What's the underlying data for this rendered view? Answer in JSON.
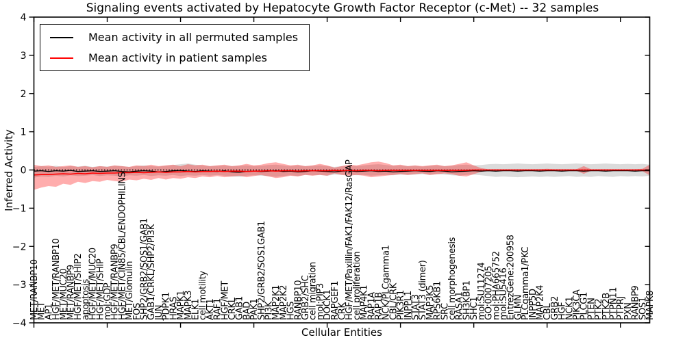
{
  "title": "Signaling events activated by Hepatocyte Growth Factor Receptor (c-Met) -- 32 samples",
  "legend": {
    "entries": [
      {
        "label": "Mean activity in all permuted samples",
        "color": "#000000"
      },
      {
        "label": "Mean activity in patient samples",
        "color": "#ff0000"
      }
    ]
  },
  "chart_data": {
    "type": "line",
    "title": "Signaling events activated by Hepatocyte Growth Factor Receptor (c-Met) -- 32 samples",
    "xlabel": "Cellular Entities",
    "ylabel": "Inferred Activity",
    "ylim": [
      -4,
      4
    ],
    "yticks": [
      -4,
      -3,
      -2,
      -1,
      0,
      1,
      2,
      3,
      4
    ],
    "x_major_tick_every": 10,
    "grid": false,
    "legend_position": "upper left",
    "zero_reference_line": {
      "y": 0,
      "style": "dotted",
      "color": "#000000"
    },
    "categories": [
      "MET/RANBP10",
      "MET",
      "AP1",
      "HGF/MET/RANBP10",
      "MET/MUC20",
      "MET/RANBP9",
      "HGF/MET/SHIP2",
      "apoptosis",
      "HGF/MET/MUC20",
      "HGF/MET/SHIP",
      "mol:GDP",
      "HGF/MET/RANBP9",
      "HGF/MET/CIN85/CBL/ENDOPHILINS",
      "MET/Glomulin",
      "FOS",
      "SHP2/GRB2/SOS1/GAB1",
      "GAB1/CRKL/SHP2/PI3K",
      "JUN",
      "PDPK1",
      "HRAS",
      "MAPK1",
      "MAPK3",
      "ELK1",
      "cell motility",
      "AKT1",
      "RAF1",
      "HGF/MET",
      "CRKL",
      "GAB1",
      "BAD",
      "PAK1",
      "SHP2/GRB2/SOS1GAB1",
      "PI3K",
      "MAP2K1",
      "MAP2K2",
      "HGS",
      "RANBP10",
      "GRB2/SHC",
      "cell migration",
      "mol:PIP3",
      "DOCK1",
      "RAPGEF1",
      "CRK",
      "HGF/MET/Paxillin/FAK1/FAK12/RasGAP",
      "cell proliferation",
      "MAP4K1",
      "RAP1A",
      "RAP1B",
      "NCK/PLCgamma1",
      "CBL/CRK",
      "PIK3R1",
      "INPPL1",
      "STAT3",
      "STAT3 (dimer)",
      "MAP3K5",
      "RPS6KB1",
      "SRC",
      "cell morphogenesis",
      "RASA1",
      "SH3KBP1",
      "SHC1",
      "mol:SU11274",
      "GO:0007205",
      "mol:PHA665752",
      "mol:SU5416",
      "EntrezGene:200958",
      "GLMN",
      "PLCgamma1/PKC",
      "INPP5D",
      "MAP2K4",
      "CBL",
      "GRB2",
      "HGF",
      "NCK1",
      "PIK3CA",
      "PLCG1",
      "PTEN",
      "PTK2",
      "PTK2B",
      "PTPN11",
      "PTPRJ",
      "PXN",
      "RANBP9",
      "SOS1",
      "MAPK8"
    ],
    "series": [
      {
        "name": "Mean activity in all permuted samples",
        "color": "#000000",
        "values": [
          -0.03,
          -0.02,
          -0.04,
          -0.02,
          -0.03,
          -0.01,
          -0.04,
          -0.03,
          -0.02,
          -0.04,
          -0.03,
          -0.02,
          -0.04,
          -0.05,
          -0.03,
          -0.02,
          -0.03,
          -0.05,
          -0.04,
          -0.02,
          -0.01,
          -0.03,
          -0.04,
          -0.02,
          -0.03,
          -0.04,
          -0.02,
          -0.05,
          -0.06,
          -0.04,
          -0.03,
          -0.04,
          -0.03,
          -0.02,
          -0.04,
          -0.03,
          -0.05,
          -0.04,
          -0.02,
          -0.03,
          -0.04,
          -0.05,
          -0.03,
          -0.02,
          -0.04,
          -0.03,
          -0.02,
          -0.04,
          -0.03,
          -0.05,
          -0.04,
          -0.03,
          -0.02,
          -0.03,
          -0.04,
          -0.02,
          -0.03,
          -0.05,
          -0.04,
          -0.03,
          -0.02,
          -0.03,
          -0.02,
          -0.03,
          -0.02,
          -0.02,
          -0.03,
          -0.02,
          -0.02,
          -0.03,
          -0.02,
          -0.02,
          -0.03,
          -0.02,
          -0.02,
          -0.03,
          -0.02,
          -0.02,
          -0.03,
          -0.02,
          -0.02,
          -0.02,
          -0.03,
          -0.02,
          -0.02
        ]
      },
      {
        "name": "Mean activity in patient samples",
        "color": "#ff0000",
        "values": [
          -0.13,
          -0.12,
          -0.12,
          -0.11,
          -0.1,
          -0.11,
          -0.09,
          -0.1,
          -0.08,
          -0.09,
          -0.08,
          -0.08,
          -0.07,
          -0.07,
          -0.06,
          -0.07,
          -0.06,
          -0.05,
          -0.06,
          -0.05,
          -0.05,
          -0.04,
          -0.05,
          -0.04,
          -0.04,
          -0.03,
          -0.04,
          -0.03,
          -0.03,
          -0.04,
          -0.03,
          -0.03,
          -0.02,
          -0.03,
          -0.02,
          -0.02,
          -0.03,
          -0.02,
          -0.02,
          -0.02,
          -0.02,
          -0.01,
          -0.02,
          -0.01,
          -0.02,
          -0.01,
          -0.01,
          -0.02,
          -0.01,
          -0.01,
          -0.01,
          -0.01,
          -0.01,
          -0.01,
          -0.01,
          -0.01,
          -0.01,
          -0.01,
          -0.01,
          -0.01,
          0.0,
          0.0,
          0.0,
          0.0,
          0.0,
          0.0,
          0.0,
          0.0,
          0.0,
          0.0,
          0.0,
          0.0,
          0.0,
          0.0,
          0.0,
          0.0,
          0.0,
          0.0,
          0.0,
          0.0,
          0.0,
          0.0,
          0.0,
          0.0,
          0.0
        ]
      }
    ],
    "bands": [
      {
        "name": "Std dev of permuted samples",
        "color": "#000000",
        "opacity": 0.14,
        "upper": [
          0.08,
          0.1,
          0.09,
          0.11,
          0.08,
          0.1,
          0.09,
          0.11,
          0.08,
          0.1,
          0.09,
          0.11,
          0.1,
          0.08,
          0.1,
          0.12,
          0.1,
          0.09,
          0.11,
          0.13,
          0.15,
          0.17,
          0.14,
          0.12,
          0.1,
          0.11,
          0.12,
          0.1,
          0.11,
          0.12,
          0.1,
          0.11,
          0.13,
          0.14,
          0.12,
          0.1,
          0.12,
          0.1,
          0.11,
          0.12,
          0.1,
          0.08,
          0.1,
          0.12,
          0.1,
          0.12,
          0.14,
          0.15,
          0.13,
          0.11,
          0.12,
          0.1,
          0.11,
          0.09,
          0.11,
          0.12,
          0.1,
          0.11,
          0.13,
          0.14,
          0.12,
          0.13,
          0.15,
          0.16,
          0.15,
          0.16,
          0.17,
          0.16,
          0.15,
          0.16,
          0.17,
          0.16,
          0.15,
          0.16,
          0.17,
          0.16,
          0.15,
          0.16,
          0.17,
          0.16,
          0.15,
          0.16,
          0.15,
          0.16,
          0.14
        ],
        "lower": [
          -0.2,
          -0.17,
          -0.18,
          -0.15,
          -0.17,
          -0.14,
          -0.16,
          -0.15,
          -0.13,
          -0.16,
          -0.14,
          -0.15,
          -0.17,
          -0.14,
          -0.15,
          -0.13,
          -0.16,
          -0.14,
          -0.15,
          -0.13,
          -0.16,
          -0.14,
          -0.15,
          -0.13,
          -0.15,
          -0.13,
          -0.15,
          -0.17,
          -0.18,
          -0.15,
          -0.14,
          -0.15,
          -0.16,
          -0.18,
          -0.16,
          -0.14,
          -0.16,
          -0.13,
          -0.14,
          -0.13,
          -0.15,
          -0.12,
          -0.13,
          -0.12,
          -0.14,
          -0.13,
          -0.15,
          -0.14,
          -0.13,
          -0.14,
          -0.12,
          -0.13,
          -0.12,
          -0.11,
          -0.13,
          -0.11,
          -0.12,
          -0.14,
          -0.15,
          -0.13,
          -0.12,
          -0.14,
          -0.16,
          -0.18,
          -0.17,
          -0.18,
          -0.19,
          -0.18,
          -0.17,
          -0.18,
          -0.17,
          -0.18,
          -0.17,
          -0.16,
          -0.18,
          -0.17,
          -0.18,
          -0.16,
          -0.17,
          -0.18,
          -0.16,
          -0.17,
          -0.16,
          -0.17,
          -0.15
        ]
      },
      {
        "name": "Std dev of patient samples",
        "color": "#ff0000",
        "opacity": 0.32,
        "upper": [
          0.14,
          0.1,
          0.12,
          0.08,
          0.1,
          0.12,
          0.08,
          0.1,
          0.07,
          0.1,
          0.08,
          0.12,
          0.1,
          0.08,
          0.12,
          0.1,
          0.14,
          0.1,
          0.12,
          0.14,
          0.1,
          0.15,
          0.12,
          0.14,
          0.1,
          0.12,
          0.14,
          0.1,
          0.12,
          0.16,
          0.12,
          0.14,
          0.18,
          0.2,
          0.16,
          0.12,
          0.14,
          0.1,
          0.12,
          0.16,
          0.12,
          0.06,
          0.1,
          0.14,
          0.12,
          0.16,
          0.2,
          0.22,
          0.18,
          0.12,
          0.14,
          0.1,
          0.12,
          0.1,
          0.12,
          0.14,
          0.1,
          0.12,
          0.16,
          0.2,
          0.12,
          0.05,
          0.02,
          0.02,
          0.02,
          0.02,
          0.02,
          0.02,
          0.02,
          0.02,
          0.03,
          0.02,
          0.02,
          0.02,
          0.02,
          0.1,
          0.02,
          0.02,
          0.02,
          0.02,
          0.02,
          0.02,
          0.02,
          0.03,
          0.14
        ],
        "lower": [
          -0.52,
          -0.46,
          -0.42,
          -0.44,
          -0.36,
          -0.39,
          -0.31,
          -0.34,
          -0.29,
          -0.31,
          -0.26,
          -0.29,
          -0.31,
          -0.25,
          -0.27,
          -0.23,
          -0.26,
          -0.21,
          -0.25,
          -0.21,
          -0.23,
          -0.19,
          -0.21,
          -0.17,
          -0.19,
          -0.16,
          -0.19,
          -0.17,
          -0.15,
          -0.19,
          -0.16,
          -0.13,
          -0.17,
          -0.21,
          -0.19,
          -0.15,
          -0.17,
          -0.13,
          -0.15,
          -0.13,
          -0.15,
          -0.09,
          -0.13,
          -0.15,
          -0.13,
          -0.15,
          -0.19,
          -0.17,
          -0.15,
          -0.13,
          -0.11,
          -0.13,
          -0.11,
          -0.09,
          -0.13,
          -0.11,
          -0.09,
          -0.11,
          -0.15,
          -0.17,
          -0.11,
          -0.05,
          -0.02,
          -0.02,
          -0.02,
          -0.02,
          -0.02,
          -0.02,
          -0.02,
          -0.02,
          -0.03,
          -0.02,
          -0.02,
          -0.02,
          -0.02,
          -0.1,
          -0.02,
          -0.02,
          -0.02,
          -0.02,
          -0.02,
          -0.02,
          -0.02,
          -0.03,
          -0.14
        ]
      }
    ]
  }
}
